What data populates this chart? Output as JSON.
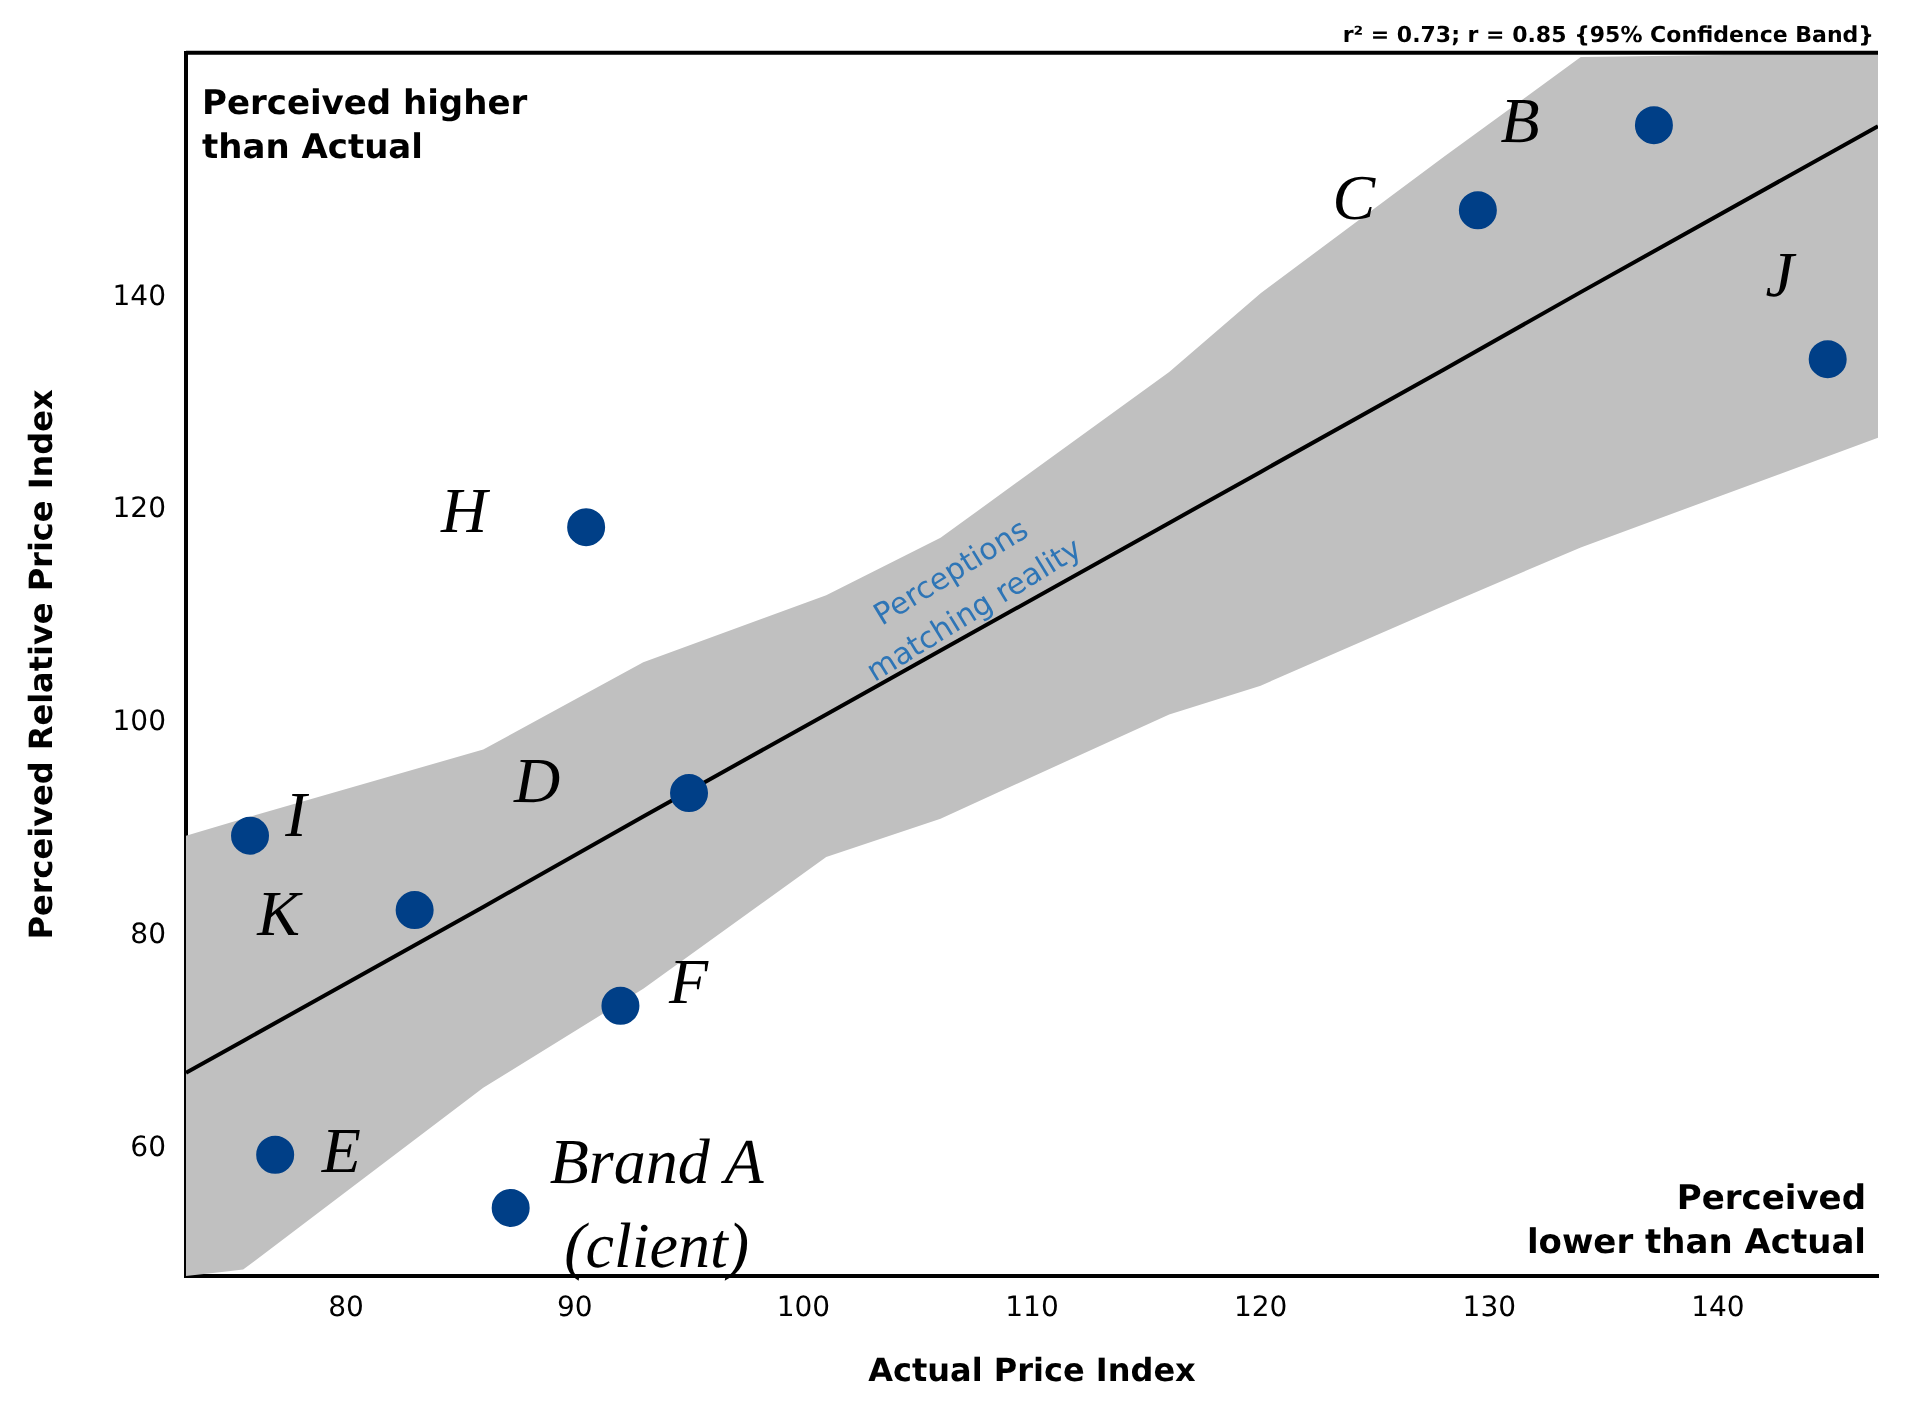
{
  "chart_data": {
    "type": "scatter",
    "subtitle": "r² = 0.73; r = 0.85 {95% Confidence Band}",
    "xlabel": "Actual Price Index",
    "ylabel": "Perceived Relative Price Index",
    "xlim": [
      73,
      147
    ],
    "ylim": [
      48,
      163
    ],
    "xticks": [
      80,
      90,
      100,
      110,
      120,
      130,
      140
    ],
    "yticks": [
      60,
      80,
      100,
      120,
      140
    ],
    "grid": false,
    "legend": false,
    "marker": "circle",
    "series": [
      {
        "type": "line",
        "color": "#000000",
        "x": [
          73,
          75.5,
          86,
          93,
          101,
          106,
          116,
          120,
          128,
          134,
          147
        ],
        "values": [
          67.1,
          70.1,
          82.7,
          91.2,
          100.8,
          106.8,
          118.8,
          123.6,
          133.2,
          140.5,
          156.1
        ],
        "lower": [
          48,
          48.6,
          65.7,
          75,
          87.4,
          91,
          100.8,
          103.5,
          111,
          116.5,
          126.8
        ],
        "upper": [
          89.4,
          91,
          97.5,
          105.7,
          112,
          117.4,
          133,
          140.4,
          153.2,
          162.6,
          163
        ],
        "marker": "none"
      },
      {
        "color": "#003f87",
        "x": [
          137.2,
          129.5,
          144.8,
          90.5,
          95.0,
          75.8,
          83.0,
          92.0,
          76.9,
          87.2
        ],
        "values": [
          156.2,
          148.2,
          134.2,
          118.4,
          93.4,
          89.4,
          82.4,
          73.4,
          59.4,
          54.4
        ]
      }
    ],
    "annotations": [
      "Perceived higher than Actual",
      "Perceived lower than Actual",
      "Perceptions matching reality",
      {
        "text": "B",
        "x": 137.2,
        "y": 156.2
      },
      {
        "text": "C",
        "x": 129.5,
        "y": 148.2
      },
      {
        "text": "J",
        "x": 144.8,
        "y": 134.2
      },
      {
        "text": "H",
        "x": 90.5,
        "y": 118.4
      },
      {
        "text": "D",
        "x": 95.0,
        "y": 93.4
      },
      {
        "text": "I",
        "x": 75.8,
        "y": 89.4
      },
      {
        "text": "K",
        "x": 83.0,
        "y": 82.4
      },
      {
        "text": "F",
        "x": 92.0,
        "y": 73.4
      },
      {
        "text": "E",
        "x": 76.9,
        "y": 59.4
      },
      {
        "text": "Brand A (client)",
        "x": 87.2,
        "y": 54.4
      }
    ]
  }
}
